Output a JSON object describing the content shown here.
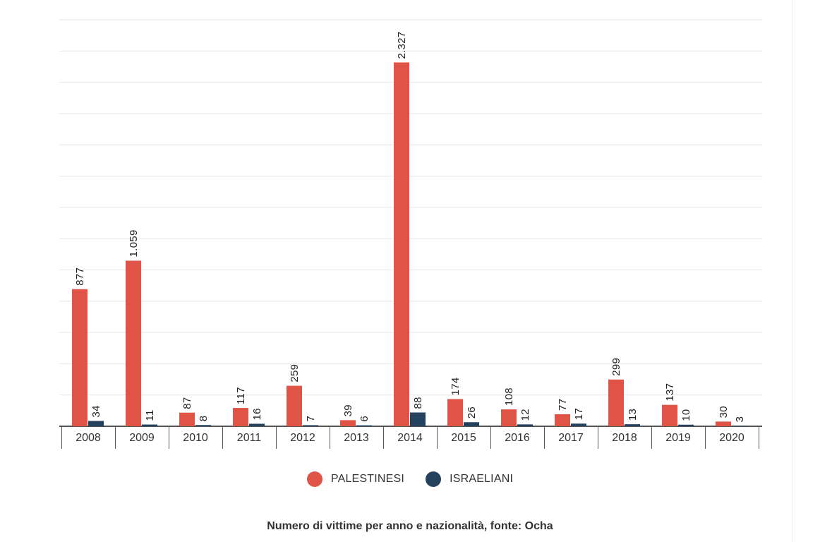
{
  "colors": {
    "palestinesi": "#e05447",
    "israeliani": "#24425e",
    "grid": "#e6e6e6",
    "axis": "#555555",
    "text": "#333333"
  },
  "chart_data": {
    "type": "bar",
    "categories": [
      "2008",
      "2009",
      "2010",
      "2011",
      "2012",
      "2013",
      "2014",
      "2015",
      "2016",
      "2017",
      "2018",
      "2019",
      "2020"
    ],
    "series": [
      {
        "name": "PALESTINESI",
        "values": [
          877,
          1059,
          87,
          117,
          259,
          39,
          2327,
          174,
          108,
          77,
          299,
          137,
          30
        ],
        "labels": [
          "877",
          "1.059",
          "87",
          "117",
          "259",
          "39",
          "2.327",
          "174",
          "108",
          "77",
          "299",
          "137",
          "30"
        ]
      },
      {
        "name": "ISRAELIANI",
        "values": [
          34,
          11,
          8,
          16,
          7,
          6,
          88,
          26,
          12,
          17,
          13,
          10,
          3
        ],
        "labels": [
          "34",
          "11",
          "8",
          "16",
          "7",
          "6",
          "88",
          "26",
          "12",
          "17",
          "13",
          "10",
          "3"
        ]
      }
    ],
    "ylim": [
      0,
      2600
    ],
    "grid": true,
    "legend_position": "bottom-center",
    "caption": "Numero di vittime per anno e nazionalità, fonte: Ocha"
  }
}
